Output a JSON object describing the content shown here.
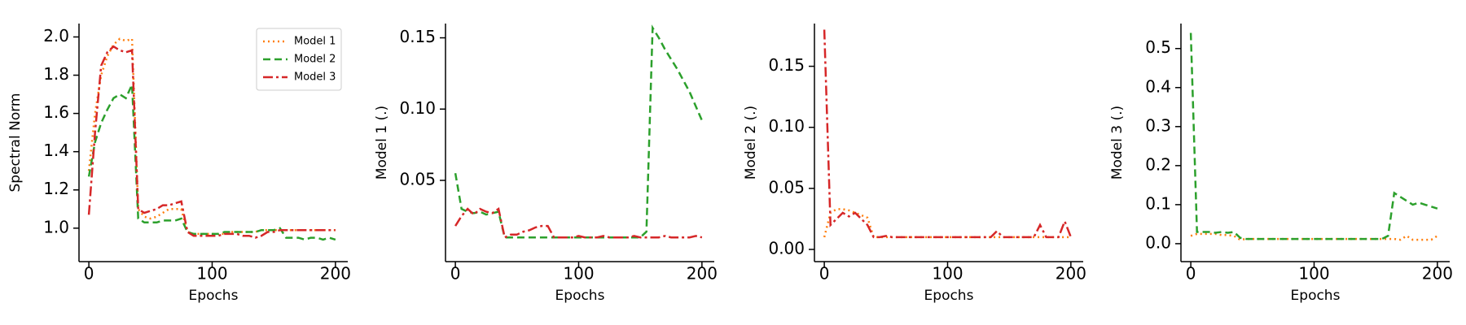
{
  "chart_data": [
    {
      "type": "line",
      "ylabel": "Spectral Norm",
      "xlabel": "Epochs",
      "x": [
        0,
        5,
        10,
        15,
        20,
        25,
        30,
        35,
        40,
        45,
        50,
        55,
        60,
        65,
        70,
        75,
        80,
        85,
        90,
        95,
        100,
        105,
        110,
        115,
        120,
        125,
        130,
        135,
        140,
        145,
        150,
        155,
        160,
        165,
        170,
        175,
        180,
        185,
        190,
        195,
        200
      ],
      "xlim": [
        -8,
        210
      ],
      "xticks": [
        0,
        100,
        200
      ],
      "ylim": [
        0.825,
        2.07
      ],
      "yticks": [
        {
          "value": 1,
          "label": "1.0"
        },
        1.2,
        1.4,
        1.6,
        1.8,
        {
          "value": 2,
          "label": "2.0"
        }
      ],
      "legend": "upper right",
      "series": [
        {
          "name": "Model 1",
          "color": "#ff7f0e",
          "dash": "dotted",
          "values": [
            1.3,
            1.6,
            1.8,
            1.9,
            1.96,
            1.99,
            1.98,
            1.99,
            1.1,
            1.06,
            1.05,
            1.06,
            1.08,
            1.1,
            1.1,
            1.1,
            0.98,
            0.97,
            0.97,
            0.97,
            0.97,
            0.97,
            0.97,
            0.98,
            0.98,
            0.98,
            0.98,
            0.98,
            0.99,
            0.99,
            0.99,
            0.99,
            0.99,
            0.99,
            0.99,
            0.99,
            0.99,
            0.99,
            0.99,
            0.99,
            0.99
          ]
        },
        {
          "name": "Model 2",
          "color": "#2ca02c",
          "dash": "dashed",
          "values": [
            1.27,
            1.45,
            1.55,
            1.62,
            1.68,
            1.7,
            1.68,
            1.75,
            1.05,
            1.03,
            1.03,
            1.03,
            1.04,
            1.04,
            1.04,
            1.05,
            0.98,
            0.97,
            0.97,
            0.97,
            0.97,
            0.97,
            0.98,
            0.98,
            0.98,
            0.98,
            0.98,
            0.98,
            0.99,
            0.99,
            0.99,
            1.0,
            0.95,
            0.95,
            0.95,
            0.94,
            0.95,
            0.95,
            0.94,
            0.95,
            0.94
          ]
        },
        {
          "name": "Model 3",
          "color": "#d62728",
          "dash": "dashdot",
          "values": [
            1.07,
            1.5,
            1.85,
            1.92,
            1.95,
            1.93,
            1.92,
            1.93,
            1.1,
            1.08,
            1.09,
            1.1,
            1.12,
            1.12,
            1.13,
            1.14,
            0.98,
            0.96,
            0.96,
            0.96,
            0.96,
            0.96,
            0.97,
            0.97,
            0.97,
            0.96,
            0.96,
            0.95,
            0.96,
            0.98,
            0.98,
            0.99,
            0.99,
            0.99,
            0.99,
            0.99,
            0.99,
            0.99,
            0.99,
            0.99,
            0.99
          ]
        }
      ]
    },
    {
      "type": "line",
      "ylabel": "Model 1 (.)",
      "xlabel": "Epochs",
      "x": [
        0,
        5,
        10,
        15,
        20,
        25,
        30,
        35,
        40,
        45,
        50,
        55,
        60,
        65,
        70,
        75,
        80,
        85,
        90,
        95,
        100,
        105,
        110,
        115,
        120,
        125,
        130,
        135,
        140,
        145,
        150,
        155,
        160,
        165,
        170,
        175,
        180,
        185,
        190,
        195,
        200
      ],
      "xlim": [
        -8,
        210
      ],
      "xticks": [
        0,
        100,
        200
      ],
      "ylim": [
        -0.007,
        0.16
      ],
      "yticks": [
        0.05,
        {
          "value": 0.1,
          "label": "0.10"
        },
        0.15
      ],
      "series": [
        {
          "color": "#2ca02c",
          "dash": "dashed",
          "values": [
            0.055,
            0.03,
            0.028,
            0.027,
            0.028,
            0.026,
            0.027,
            0.028,
            0.01,
            0.01,
            0.01,
            0.01,
            0.01,
            0.01,
            0.01,
            0.01,
            0.01,
            0.01,
            0.01,
            0.01,
            0.01,
            0.01,
            0.01,
            0.01,
            0.01,
            0.01,
            0.01,
            0.01,
            0.01,
            0.01,
            0.01,
            0.014,
            0.157,
            0.15,
            0.142,
            0.135,
            0.128,
            0.12,
            0.112,
            0.102,
            0.092
          ]
        },
        {
          "color": "#d62728",
          "dash": "dashdot",
          "values": [
            0.018,
            0.025,
            0.03,
            0.026,
            0.03,
            0.028,
            0.027,
            0.03,
            0.01,
            0.012,
            0.012,
            0.014,
            0.015,
            0.017,
            0.018,
            0.018,
            0.01,
            0.01,
            0.01,
            0.01,
            0.011,
            0.01,
            0.01,
            0.01,
            0.011,
            0.01,
            0.01,
            0.01,
            0.01,
            0.011,
            0.01,
            0.01,
            0.01,
            0.01,
            0.011,
            0.01,
            0.01,
            0.01,
            0.01,
            0.011,
            0.01
          ]
        }
      ]
    },
    {
      "type": "line",
      "ylabel": "Model 2 (.)",
      "xlabel": "Epochs",
      "x": [
        0,
        5,
        10,
        15,
        20,
        25,
        30,
        35,
        40,
        45,
        50,
        55,
        60,
        65,
        70,
        75,
        80,
        85,
        90,
        95,
        100,
        105,
        110,
        115,
        120,
        125,
        130,
        135,
        140,
        145,
        150,
        155,
        160,
        165,
        170,
        175,
        180,
        185,
        190,
        195,
        200
      ],
      "xlim": [
        -8,
        210
      ],
      "xticks": [
        0,
        100,
        200
      ],
      "ylim": [
        -0.01,
        0.185
      ],
      "yticks": [
        {
          "value": 0,
          "label": "0.00"
        },
        0.05,
        {
          "value": 0.1,
          "label": "0.10"
        },
        0.15
      ],
      "series": [
        {
          "color": "#ff7f0e",
          "dash": "dotted",
          "values": [
            0.01,
            0.03,
            0.033,
            0.033,
            0.032,
            0.03,
            0.028,
            0.026,
            0.01,
            0.01,
            0.01,
            0.01,
            0.01,
            0.01,
            0.01,
            0.01,
            0.01,
            0.01,
            0.01,
            0.01,
            0.01,
            0.01,
            0.01,
            0.01,
            0.01,
            0.01,
            0.01,
            0.01,
            0.01,
            0.01,
            0.01,
            0.01,
            0.01,
            0.01,
            0.01,
            0.01,
            0.01,
            0.01,
            0.01,
            0.01,
            0.01
          ]
        },
        {
          "color": "#d62728",
          "dash": "dashdot",
          "values": [
            0.18,
            0.02,
            0.025,
            0.03,
            0.027,
            0.03,
            0.025,
            0.02,
            0.01,
            0.01,
            0.011,
            0.01,
            0.01,
            0.01,
            0.01,
            0.01,
            0.01,
            0.01,
            0.01,
            0.01,
            0.01,
            0.01,
            0.01,
            0.01,
            0.01,
            0.01,
            0.01,
            0.01,
            0.015,
            0.01,
            0.01,
            0.01,
            0.01,
            0.01,
            0.01,
            0.02,
            0.01,
            0.01,
            0.01,
            0.023,
            0.01
          ]
        }
      ]
    },
    {
      "type": "line",
      "ylabel": "Model 3 (.)",
      "xlabel": "Epochs",
      "x": [
        0,
        5,
        10,
        15,
        20,
        25,
        30,
        35,
        40,
        45,
        50,
        55,
        60,
        65,
        70,
        75,
        80,
        85,
        90,
        95,
        100,
        105,
        110,
        115,
        120,
        125,
        130,
        135,
        140,
        145,
        150,
        155,
        160,
        165,
        170,
        175,
        180,
        185,
        190,
        195,
        200
      ],
      "xlim": [
        -8,
        210
      ],
      "xticks": [
        0,
        100,
        200
      ],
      "ylim": [
        -0.046,
        0.564
      ],
      "yticks": [
        {
          "value": 0,
          "label": "0.0"
        },
        0.1,
        0.2,
        0.3,
        0.4,
        0.5
      ],
      "series": [
        {
          "color": "#ff7f0e",
          "dash": "dotted",
          "values": [
            0.02,
            0.025,
            0.025,
            0.025,
            0.025,
            0.022,
            0.022,
            0.02,
            0.01,
            0.012,
            0.012,
            0.012,
            0.012,
            0.012,
            0.012,
            0.012,
            0.012,
            0.012,
            0.012,
            0.012,
            0.012,
            0.012,
            0.012,
            0.012,
            0.012,
            0.012,
            0.012,
            0.012,
            0.012,
            0.012,
            0.012,
            0.012,
            0.012,
            0.012,
            0.01,
            0.02,
            0.01,
            0.01,
            0.01,
            0.01,
            0.02
          ]
        },
        {
          "color": "#2ca02c",
          "dash": "dashed",
          "values": [
            0.54,
            0.03,
            0.03,
            0.03,
            0.028,
            0.03,
            0.028,
            0.03,
            0.015,
            0.012,
            0.012,
            0.012,
            0.012,
            0.012,
            0.012,
            0.012,
            0.012,
            0.012,
            0.012,
            0.012,
            0.012,
            0.012,
            0.012,
            0.012,
            0.012,
            0.012,
            0.012,
            0.012,
            0.012,
            0.012,
            0.012,
            0.012,
            0.02,
            0.13,
            0.12,
            0.11,
            0.1,
            0.105,
            0.1,
            0.095,
            0.09
          ]
        }
      ]
    }
  ]
}
